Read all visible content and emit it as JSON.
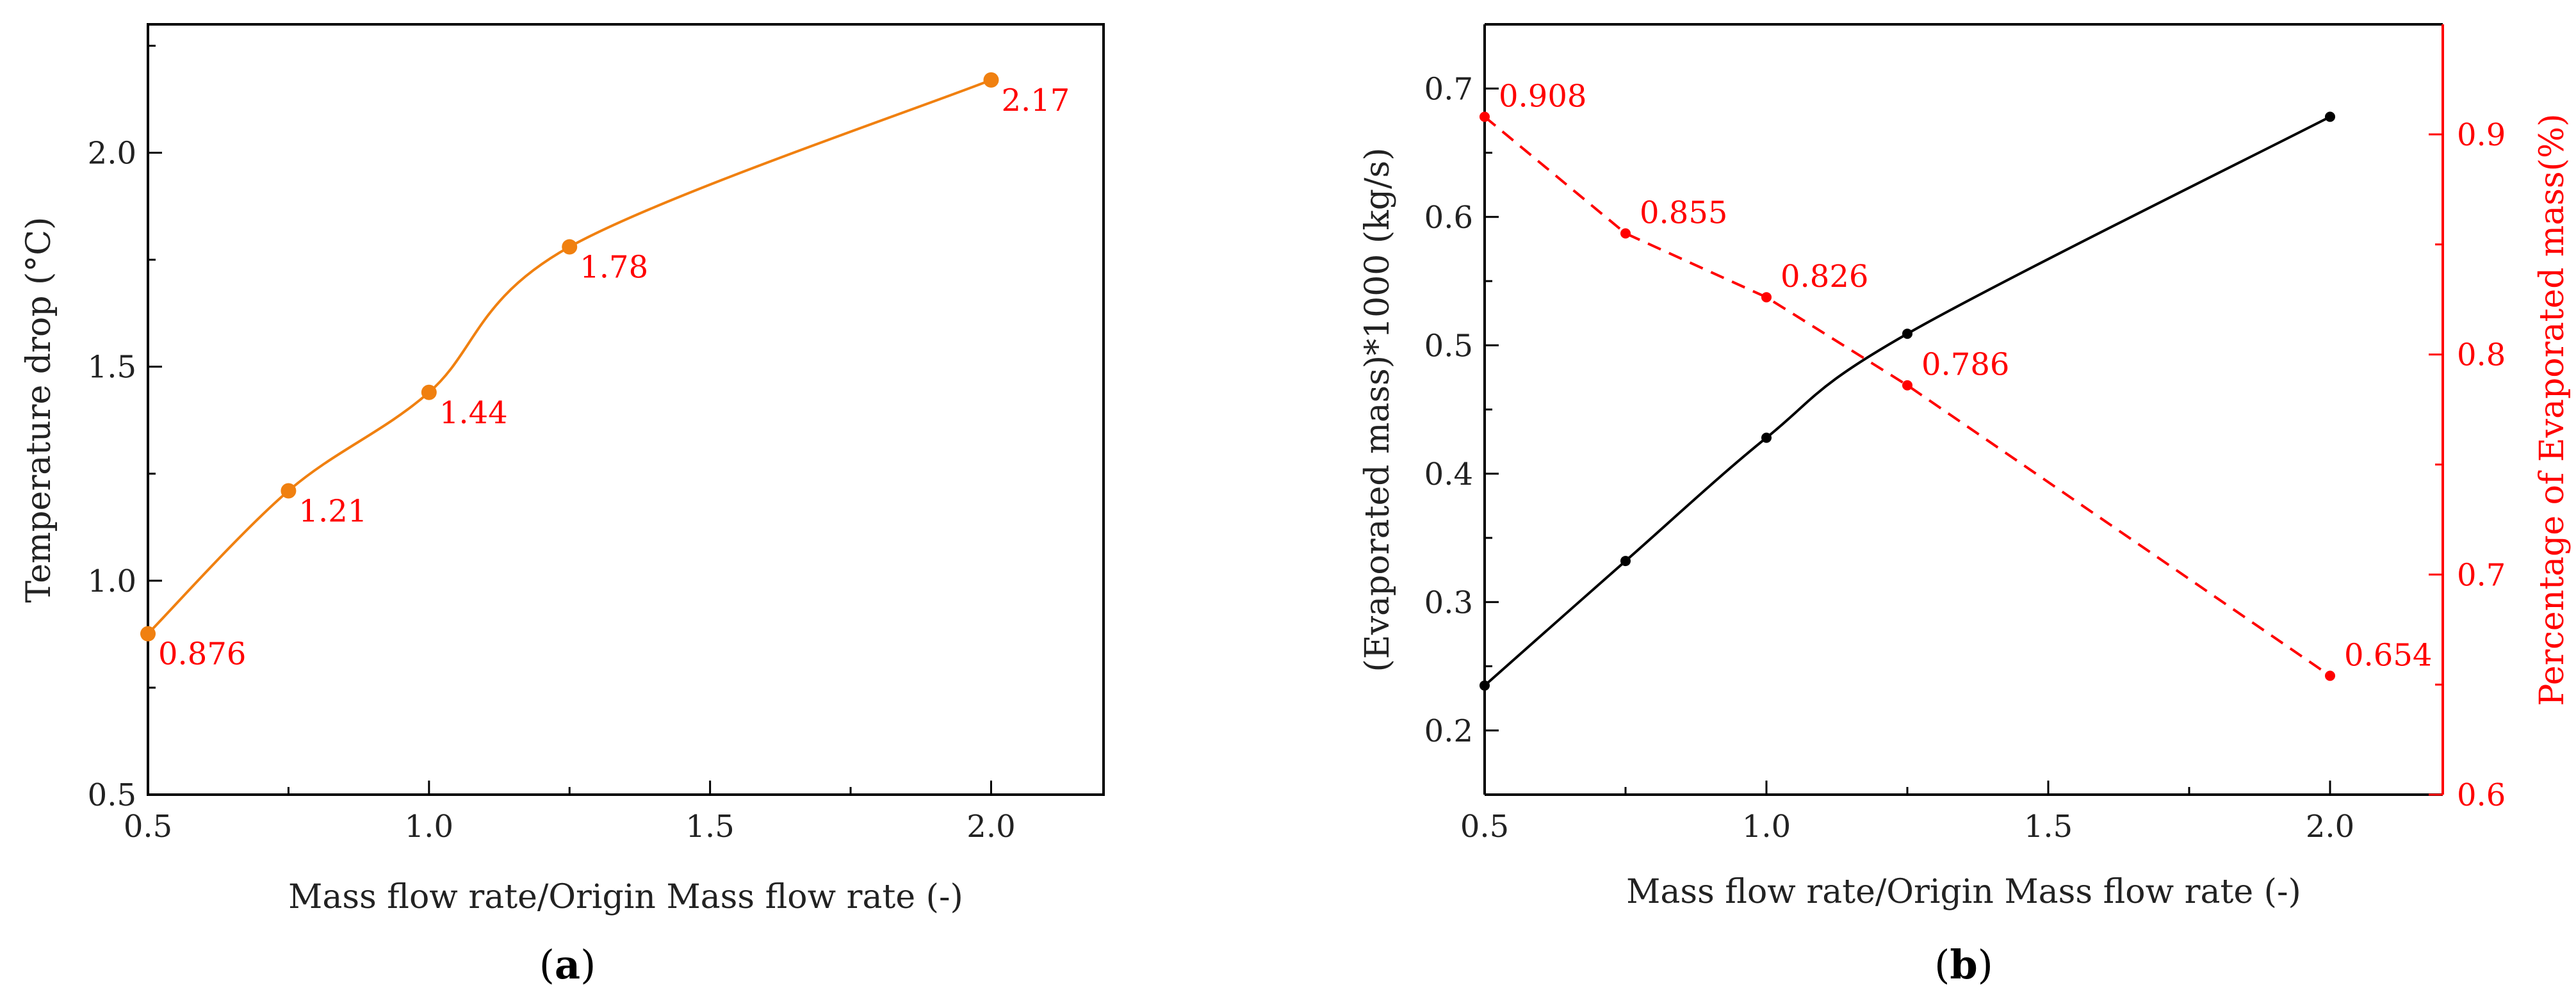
{
  "colors": {
    "axis": "#000000",
    "series_a": "#f08010",
    "series_b_primary": "#000000",
    "series_b_secondary": "#ff0000",
    "data_label": "#ff0000"
  },
  "chart_data": [
    {
      "type": "line",
      "panel_label": "a",
      "xlabel": "Mass flow rate/Origin Mass flow rate (-)",
      "ylabel": "Temperature drop (°C)",
      "xlim": [
        0.5,
        2.2
      ],
      "ylim": [
        0.5,
        2.3
      ],
      "xticks": [
        0.5,
        1.0,
        1.5,
        2.0
      ],
      "xtick_labels": [
        "0.5",
        "1.0",
        "1.5",
        "2.0"
      ],
      "yticks": [
        0.5,
        1.0,
        1.5,
        2.0
      ],
      "ytick_labels": [
        "0.5",
        "1.0",
        "1.5",
        "2.0"
      ],
      "series": [
        {
          "name": "Temperature drop",
          "x": [
            0.5,
            0.75,
            1.0,
            1.25,
            2.0
          ],
          "y": [
            0.876,
            1.21,
            1.44,
            1.78,
            2.17
          ],
          "labels": [
            "0.876",
            "1.21",
            "1.44",
            "1.78",
            "2.17"
          ],
          "style": "solid-smooth"
        }
      ]
    },
    {
      "type": "line",
      "panel_label": "b",
      "xlabel": "Mass flow rate/Origin Mass flow rate (-)",
      "ylabel": "(Evaporated mass)*1000 (kg/s)",
      "ylabel_right": "Percentage of Evaporated mass(%)",
      "xlim": [
        0.5,
        2.2
      ],
      "ylim": [
        0.15,
        0.75
      ],
      "ylim_right": [
        0.6,
        0.95
      ],
      "xticks": [
        0.5,
        1.0,
        1.5,
        2.0
      ],
      "xtick_labels": [
        "0.5",
        "1.0",
        "1.5",
        "2.0"
      ],
      "yticks": [
        0.2,
        0.3,
        0.4,
        0.5,
        0.6,
        0.7
      ],
      "ytick_labels": [
        "0.2",
        "0.3",
        "0.4",
        "0.5",
        "0.6",
        "0.7"
      ],
      "yticks_right": [
        0.6,
        0.7,
        0.8,
        0.9
      ],
      "ytick_labels_right": [
        "0.6",
        "0.7",
        "0.8",
        "0.9"
      ],
      "series": [
        {
          "name": "Evaporated mass",
          "axis": "left",
          "x": [
            0.5,
            0.75,
            1.0,
            1.25,
            2.0
          ],
          "y": [
            0.235,
            0.332,
            0.428,
            0.509,
            0.678
          ],
          "style": "solid-smooth"
        },
        {
          "name": "Percentage of Evaporated mass",
          "axis": "right",
          "x": [
            0.5,
            0.75,
            1.0,
            1.25,
            2.0
          ],
          "y": [
            0.908,
            0.855,
            0.826,
            0.786,
            0.654
          ],
          "labels": [
            "0.908",
            "0.855",
            "0.826",
            "0.786",
            "0.654"
          ],
          "style": "dashed"
        }
      ]
    }
  ]
}
